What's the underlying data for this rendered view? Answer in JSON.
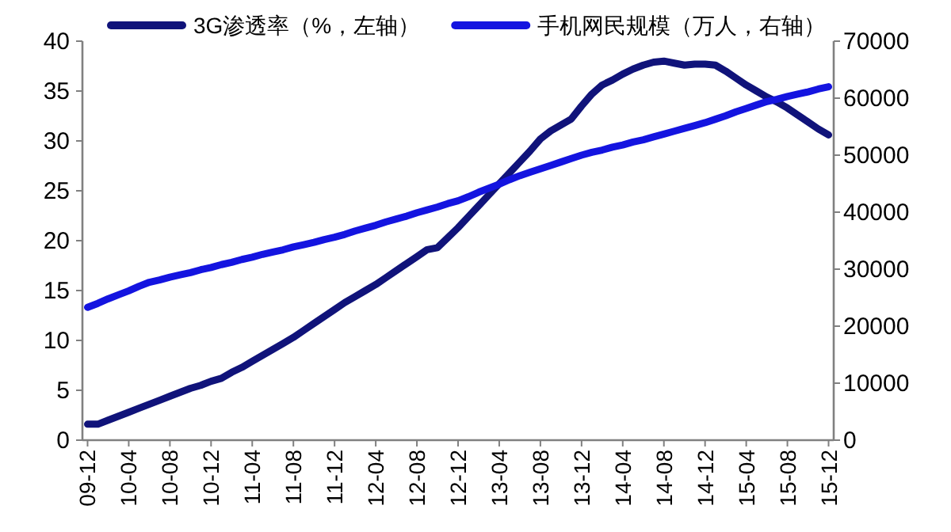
{
  "chart_data": {
    "type": "line",
    "categories": [
      "09-12",
      null,
      null,
      null,
      "10-04",
      null,
      null,
      null,
      "10-08",
      null,
      null,
      null,
      "10-12",
      null,
      null,
      null,
      "11-04",
      null,
      null,
      null,
      "11-08",
      null,
      null,
      null,
      "11-12",
      null,
      null,
      null,
      "12-04",
      null,
      null,
      null,
      "12-08",
      null,
      null,
      null,
      "12-12",
      null,
      null,
      null,
      "13-04",
      null,
      null,
      null,
      "13-08",
      null,
      null,
      null,
      "13-12",
      null,
      null,
      null,
      "14-04",
      null,
      null,
      null,
      "14-08",
      null,
      null,
      null,
      "14-12",
      null,
      null,
      null,
      "15-04",
      null,
      null,
      null,
      "15-08",
      null,
      null,
      null,
      "15-12"
    ],
    "series": [
      {
        "name": "3G渗透率（%，左轴）",
        "color": "#10137a",
        "values": [
          1.6,
          1.6,
          2.0,
          2.4,
          2.8,
          3.2,
          3.6,
          4.0,
          4.4,
          4.8,
          5.2,
          5.5,
          5.9,
          6.2,
          6.8,
          7.3,
          7.9,
          8.5,
          9.1,
          9.7,
          10.3,
          11.0,
          11.7,
          12.4,
          13.1,
          13.8,
          14.4,
          15.0,
          15.6,
          16.3,
          17.0,
          17.7,
          18.4,
          19.1,
          19.3,
          20.3,
          21.3,
          22.4,
          23.5,
          24.6,
          25.7,
          26.8,
          27.9,
          29.0,
          30.2,
          31.0,
          31.6,
          32.2,
          33.5,
          34.7,
          35.6,
          36.1,
          36.7,
          37.2,
          37.6,
          37.9,
          38.0,
          37.8,
          37.6,
          37.7,
          37.7,
          37.6,
          37.0,
          36.3,
          35.6,
          35.0,
          34.4,
          33.9,
          33.3,
          32.6,
          31.9,
          31.2,
          30.6
        ]
      },
      {
        "name": "手机网民规模（万人，右轴）",
        "color": "#1414e0",
        "axis": "y2",
        "values": [
          23300,
          24000,
          24800,
          25500,
          26200,
          27000,
          27700,
          28100,
          28600,
          29000,
          29400,
          29900,
          30300,
          30800,
          31200,
          31700,
          32100,
          32600,
          33000,
          33400,
          33900,
          34300,
          34700,
          35200,
          35600,
          36100,
          36700,
          37200,
          37700,
          38300,
          38800,
          39300,
          39900,
          40400,
          40900,
          41500,
          42000,
          42700,
          43500,
          44200,
          44900,
          45700,
          46400,
          47000,
          47600,
          48200,
          48800,
          49400,
          50000,
          50500,
          50900,
          51400,
          51800,
          52300,
          52700,
          53200,
          53700,
          54200,
          54700,
          55200,
          55700,
          56300,
          56900,
          57600,
          58200,
          58800,
          59400,
          59800,
          60300,
          60700,
          61100,
          61600,
          62000
        ]
      }
    ],
    "ylim": [
      0,
      40
    ],
    "yticks": [
      0,
      5,
      10,
      15,
      20,
      25,
      30,
      35,
      40
    ],
    "y2lim": [
      0,
      70000
    ],
    "y2ticks": [
      0,
      10000,
      20000,
      30000,
      40000,
      50000,
      60000,
      70000
    ],
    "legend": "top",
    "grid": false,
    "marker": "none",
    "line_style": "solid"
  }
}
